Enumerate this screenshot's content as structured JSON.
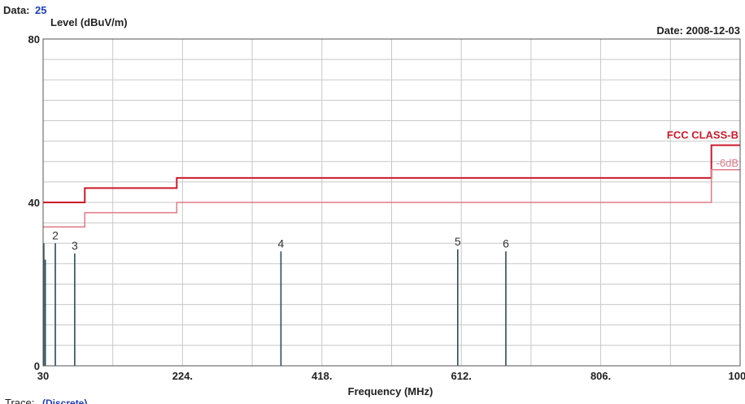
{
  "header": {
    "data_label": "Data:",
    "data_value": "25",
    "date_label": "Date: 2008-12-03"
  },
  "footer": {
    "trace_label": "Trace:",
    "trace_value": "(Discrete)"
  },
  "colors": {
    "limit": "#cc1a2a",
    "margin_limit": "#e07a86",
    "grid": "#c8c8c8",
    "emission": "#2a4a5a"
  },
  "chart_data": {
    "type": "line",
    "title": "",
    "xlabel": "Frequency (MHz)",
    "ylabel": "Level (dBuV/m)",
    "xlim": [
      30,
      1000
    ],
    "ylim": [
      0,
      80
    ],
    "x_tick_labels": [
      "30",
      "224.",
      "418.",
      "612.",
      "806.",
      "1000"
    ],
    "y_tick_labels": [
      "80",
      "40",
      "0"
    ],
    "grid": true,
    "series": [
      {
        "name": "FCC CLASS-B",
        "kind": "limit",
        "points": [
          [
            30,
            40
          ],
          [
            88,
            40
          ],
          [
            88,
            43.5
          ],
          [
            216,
            43.5
          ],
          [
            216,
            46
          ],
          [
            960,
            46
          ],
          [
            960,
            54
          ],
          [
            1000,
            54
          ]
        ]
      },
      {
        "name": "-6dB",
        "kind": "margin",
        "points": [
          [
            30,
            34
          ],
          [
            88,
            34
          ],
          [
            88,
            37.5
          ],
          [
            216,
            37.5
          ],
          [
            216,
            40
          ],
          [
            960,
            40
          ],
          [
            960,
            48
          ],
          [
            1000,
            48
          ]
        ]
      }
    ],
    "emissions": [
      {
        "marker": "",
        "x": 31,
        "y": 30
      },
      {
        "marker": "",
        "x": 33,
        "y": 26
      },
      {
        "marker": "2",
        "x": 47,
        "y": 30
      },
      {
        "marker": "3",
        "x": 74,
        "y": 27.5
      },
      {
        "marker": "4",
        "x": 361,
        "y": 28
      },
      {
        "marker": "5",
        "x": 607,
        "y": 28.5
      },
      {
        "marker": "6",
        "x": 674,
        "y": 28
      }
    ]
  }
}
